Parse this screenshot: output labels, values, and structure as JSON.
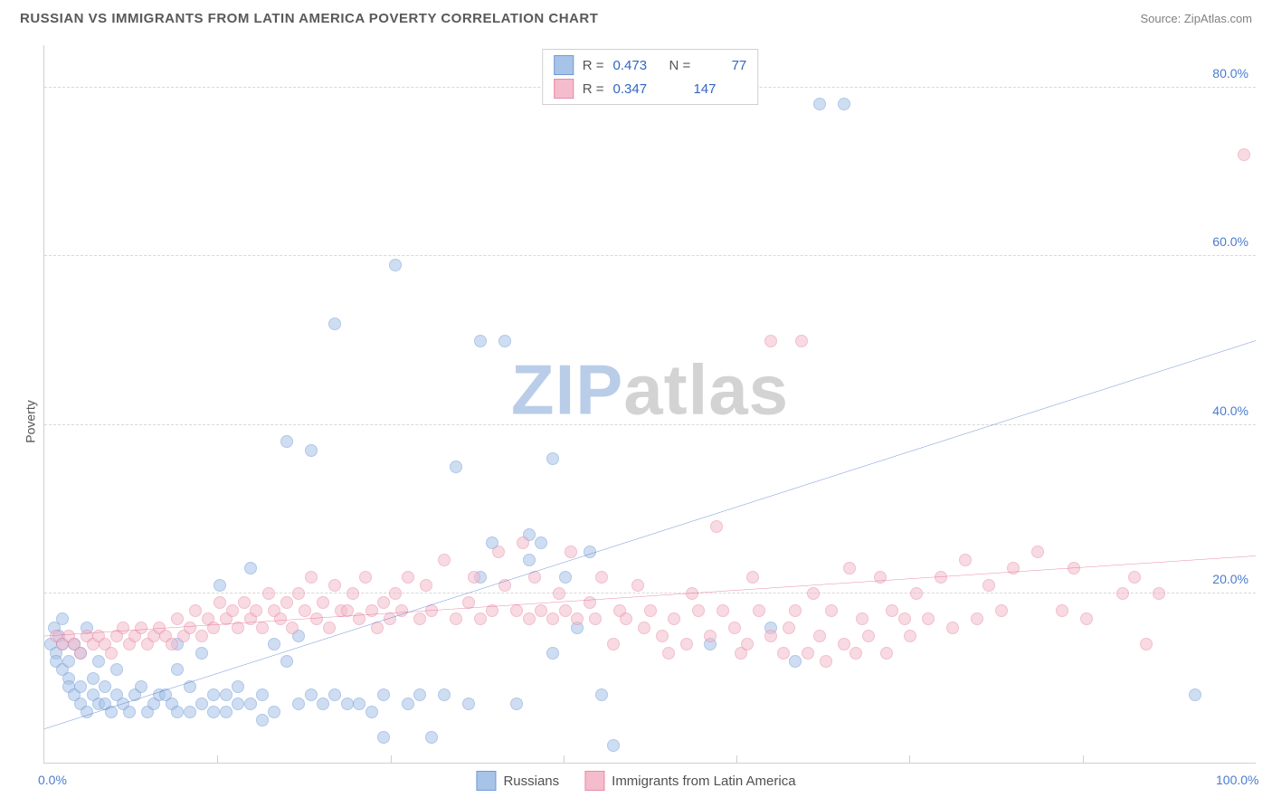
{
  "header": {
    "title": "RUSSIAN VS IMMIGRANTS FROM LATIN AMERICA POVERTY CORRELATION CHART",
    "source": "Source: ZipAtlas.com"
  },
  "ylabel": "Poverty",
  "watermark": {
    "text_zip": "ZIP",
    "text_atlas": "atlas",
    "color_zip": "#b9cde8",
    "color_atlas": "#d3d3d3"
  },
  "chart": {
    "type": "scatter",
    "xlim": [
      0,
      100
    ],
    "ylim": [
      0,
      85
    ],
    "yticks": [
      20,
      40,
      60,
      80
    ],
    "ytick_labels": [
      "20.0%",
      "40.0%",
      "60.0%",
      "80.0%"
    ],
    "xticks": [
      0,
      100
    ],
    "xtick_labels": [
      "0.0%",
      "100.0%"
    ],
    "xminor_ticks": [
      14.3,
      28.6,
      42.9,
      57.1,
      71.4,
      85.7
    ],
    "background_color": "#ffffff",
    "grid_color": "#d8d8d8",
    "axis_color": "#cfcfcf",
    "tick_label_color": "#4a7bd0",
    "point_radius": 7,
    "point_opacity": 0.55,
    "series": [
      {
        "name": "Russians",
        "color_fill": "#a8c3e8",
        "color_stroke": "#6e9bd8",
        "R": "0.473",
        "N": "77",
        "trend": {
          "x1": 0,
          "y1": 4,
          "x2": 100,
          "y2": 50,
          "color": "#2f66c4",
          "width": 2
        },
        "points": [
          [
            0.5,
            14
          ],
          [
            0.8,
            16
          ],
          [
            1,
            13
          ],
          [
            1,
            12
          ],
          [
            1.2,
            15
          ],
          [
            1.5,
            11
          ],
          [
            1.5,
            14
          ],
          [
            1.5,
            17
          ],
          [
            2,
            10
          ],
          [
            2,
            12
          ],
          [
            2,
            9
          ],
          [
            2.5,
            8
          ],
          [
            2.5,
            14
          ],
          [
            3,
            9
          ],
          [
            3,
            7
          ],
          [
            3,
            13
          ],
          [
            3.5,
            6
          ],
          [
            3.5,
            16
          ],
          [
            4,
            8
          ],
          [
            4,
            10
          ],
          [
            4.5,
            7
          ],
          [
            4.5,
            12
          ],
          [
            5,
            7
          ],
          [
            5,
            9
          ],
          [
            5.5,
            6
          ],
          [
            6,
            8
          ],
          [
            6,
            11
          ],
          [
            6.5,
            7
          ],
          [
            7,
            6
          ],
          [
            7.5,
            8
          ],
          [
            8,
            9
          ],
          [
            8.5,
            6
          ],
          [
            9,
            7
          ],
          [
            9.5,
            8
          ],
          [
            10,
            8
          ],
          [
            10.5,
            7
          ],
          [
            11,
            6
          ],
          [
            11,
            11
          ],
          [
            11,
            14
          ],
          [
            12,
            9
          ],
          [
            12,
            6
          ],
          [
            13,
            7
          ],
          [
            13,
            13
          ],
          [
            14,
            8
          ],
          [
            14,
            6
          ],
          [
            14.5,
            21
          ],
          [
            15,
            6
          ],
          [
            15,
            8
          ],
          [
            16,
            7
          ],
          [
            16,
            9
          ],
          [
            17,
            7
          ],
          [
            17,
            23
          ],
          [
            18,
            8
          ],
          [
            18,
            5
          ],
          [
            19,
            14
          ],
          [
            19,
            6
          ],
          [
            20,
            12
          ],
          [
            20,
            38
          ],
          [
            21,
            7
          ],
          [
            21,
            15
          ],
          [
            22,
            8
          ],
          [
            22,
            37
          ],
          [
            23,
            7
          ],
          [
            24,
            8
          ],
          [
            24,
            52
          ],
          [
            25,
            7
          ],
          [
            26,
            7
          ],
          [
            27,
            6
          ],
          [
            28,
            3
          ],
          [
            28,
            8
          ],
          [
            29,
            59
          ],
          [
            30,
            7
          ],
          [
            31,
            8
          ],
          [
            32,
            3
          ],
          [
            33,
            8
          ],
          [
            34,
            35
          ],
          [
            35,
            7
          ],
          [
            36,
            22
          ],
          [
            36,
            50
          ],
          [
            37,
            26
          ],
          [
            38,
            50
          ],
          [
            39,
            7
          ],
          [
            40,
            27
          ],
          [
            40,
            24
          ],
          [
            41,
            26
          ],
          [
            42,
            36
          ],
          [
            42,
            13
          ],
          [
            43,
            22
          ],
          [
            44,
            16
          ],
          [
            45,
            25
          ],
          [
            46,
            8
          ],
          [
            47,
            2
          ],
          [
            55,
            14
          ],
          [
            60,
            16
          ],
          [
            62,
            12
          ],
          [
            64,
            78
          ],
          [
            66,
            78
          ],
          [
            95,
            8
          ]
        ]
      },
      {
        "name": "Immigrants from Latin America",
        "color_fill": "#f4bccc",
        "color_stroke": "#e88ba8",
        "R": "0.347",
        "N": "147",
        "trend": {
          "x1": 0,
          "y1": 15,
          "x2": 100,
          "y2": 24.5,
          "color": "#e15a84",
          "width": 2
        },
        "points": [
          [
            1,
            15
          ],
          [
            1.5,
            14
          ],
          [
            2,
            15
          ],
          [
            2.5,
            14
          ],
          [
            3,
            13
          ],
          [
            3.5,
            15
          ],
          [
            4,
            14
          ],
          [
            4.5,
            15
          ],
          [
            5,
            14
          ],
          [
            5.5,
            13
          ],
          [
            6,
            15
          ],
          [
            6.5,
            16
          ],
          [
            7,
            14
          ],
          [
            7.5,
            15
          ],
          [
            8,
            16
          ],
          [
            8.5,
            14
          ],
          [
            9,
            15
          ],
          [
            9.5,
            16
          ],
          [
            10,
            15
          ],
          [
            10.5,
            14
          ],
          [
            11,
            17
          ],
          [
            11.5,
            15
          ],
          [
            12,
            16
          ],
          [
            12.5,
            18
          ],
          [
            13,
            15
          ],
          [
            13.5,
            17
          ],
          [
            14,
            16
          ],
          [
            14.5,
            19
          ],
          [
            15,
            17
          ],
          [
            15.5,
            18
          ],
          [
            16,
            16
          ],
          [
            16.5,
            19
          ],
          [
            17,
            17
          ],
          [
            17.5,
            18
          ],
          [
            18,
            16
          ],
          [
            18.5,
            20
          ],
          [
            19,
            18
          ],
          [
            19.5,
            17
          ],
          [
            20,
            19
          ],
          [
            20.5,
            16
          ],
          [
            21,
            20
          ],
          [
            21.5,
            18
          ],
          [
            22,
            22
          ],
          [
            22.5,
            17
          ],
          [
            23,
            19
          ],
          [
            23.5,
            16
          ],
          [
            24,
            21
          ],
          [
            24.5,
            18
          ],
          [
            25,
            18
          ],
          [
            25.5,
            20
          ],
          [
            26,
            17
          ],
          [
            26.5,
            22
          ],
          [
            27,
            18
          ],
          [
            27.5,
            16
          ],
          [
            28,
            19
          ],
          [
            28.5,
            17
          ],
          [
            29,
            20
          ],
          [
            29.5,
            18
          ],
          [
            30,
            22
          ],
          [
            31,
            17
          ],
          [
            31.5,
            21
          ],
          [
            32,
            18
          ],
          [
            33,
            24
          ],
          [
            34,
            17
          ],
          [
            35,
            19
          ],
          [
            35.5,
            22
          ],
          [
            36,
            17
          ],
          [
            37,
            18
          ],
          [
            37.5,
            25
          ],
          [
            38,
            21
          ],
          [
            39,
            18
          ],
          [
            39.5,
            26
          ],
          [
            40,
            17
          ],
          [
            40.5,
            22
          ],
          [
            41,
            18
          ],
          [
            42,
            17
          ],
          [
            42.5,
            20
          ],
          [
            43,
            18
          ],
          [
            43.5,
            25
          ],
          [
            44,
            17
          ],
          [
            45,
            19
          ],
          [
            45.5,
            17
          ],
          [
            46,
            22
          ],
          [
            47,
            14
          ],
          [
            47.5,
            18
          ],
          [
            48,
            17
          ],
          [
            49,
            21
          ],
          [
            49.5,
            16
          ],
          [
            50,
            18
          ],
          [
            51,
            15
          ],
          [
            51.5,
            13
          ],
          [
            52,
            17
          ],
          [
            53,
            14
          ],
          [
            53.5,
            20
          ],
          [
            54,
            18
          ],
          [
            55,
            15
          ],
          [
            55.5,
            28
          ],
          [
            56,
            18
          ],
          [
            57,
            16
          ],
          [
            57.5,
            13
          ],
          [
            58,
            14
          ],
          [
            58.5,
            22
          ],
          [
            59,
            18
          ],
          [
            60,
            50
          ],
          [
            60,
            15
          ],
          [
            61,
            13
          ],
          [
            61.5,
            16
          ],
          [
            62,
            18
          ],
          [
            62.5,
            50
          ],
          [
            63,
            13
          ],
          [
            63.5,
            20
          ],
          [
            64,
            15
          ],
          [
            64.5,
            12
          ],
          [
            65,
            18
          ],
          [
            66,
            14
          ],
          [
            66.5,
            23
          ],
          [
            67,
            13
          ],
          [
            67.5,
            17
          ],
          [
            68,
            15
          ],
          [
            69,
            22
          ],
          [
            69.5,
            13
          ],
          [
            70,
            18
          ],
          [
            71,
            17
          ],
          [
            71.5,
            15
          ],
          [
            72,
            20
          ],
          [
            73,
            17
          ],
          [
            74,
            22
          ],
          [
            75,
            16
          ],
          [
            76,
            24
          ],
          [
            77,
            17
          ],
          [
            78,
            21
          ],
          [
            79,
            18
          ],
          [
            80,
            23
          ],
          [
            82,
            25
          ],
          [
            84,
            18
          ],
          [
            85,
            23
          ],
          [
            86,
            17
          ],
          [
            89,
            20
          ],
          [
            90,
            22
          ],
          [
            91,
            14
          ],
          [
            92,
            20
          ],
          [
            99,
            72
          ]
        ]
      }
    ]
  },
  "legend_bottom": [
    {
      "label": "Russians",
      "fill": "#a8c3e8",
      "stroke": "#6e9bd8"
    },
    {
      "label": "Immigrants from Latin America",
      "fill": "#f4bccc",
      "stroke": "#e88ba8"
    }
  ]
}
